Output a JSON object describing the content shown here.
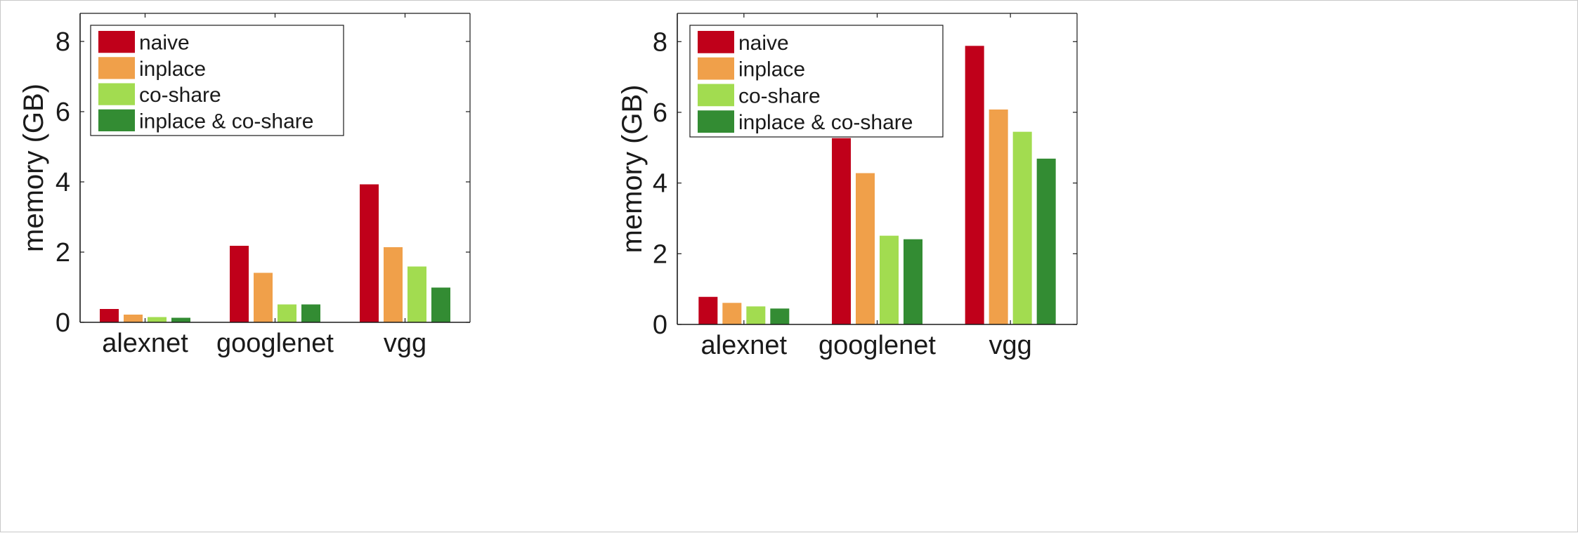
{
  "colors": {
    "naive": "#c0001a",
    "inplace": "#f0a04a",
    "co_share": "#a2dc50",
    "inplace_co_share": "#338c33",
    "axis": "#1a1a1a"
  },
  "chart_data": [
    {
      "type": "bar",
      "categories": [
        "alexnet",
        "googlenet",
        "vgg"
      ],
      "ylabel": "memory (GB)",
      "ylim": [
        0,
        8.8
      ],
      "yticks": [
        "0",
        "2",
        "4",
        "6",
        "8"
      ],
      "legend_position": "top-left",
      "series": [
        {
          "name": "naive",
          "values": [
            0.38,
            2.18,
            3.93
          ]
        },
        {
          "name": "inplace",
          "values": [
            0.22,
            1.41,
            2.14
          ]
        },
        {
          "name": "co-share",
          "values": [
            0.15,
            0.51,
            1.59
          ]
        },
        {
          "name": "inplace & co-share",
          "values": [
            0.13,
            0.51,
            0.99
          ]
        }
      ]
    },
    {
      "type": "bar",
      "categories": [
        "alexnet",
        "googlenet",
        "vgg"
      ],
      "ylabel": "memory (GB)",
      "ylim": [
        0,
        8.8
      ],
      "yticks": [
        "0",
        "2",
        "4",
        "6",
        "8"
      ],
      "legend_position": "top-left",
      "series": [
        {
          "name": "naive",
          "values": [
            0.78,
            5.27,
            7.88
          ]
        },
        {
          "name": "inplace",
          "values": [
            0.61,
            4.28,
            6.08
          ]
        },
        {
          "name": "co-share",
          "values": [
            0.51,
            2.51,
            5.45
          ]
        },
        {
          "name": "inplace & co-share",
          "values": [
            0.45,
            2.41,
            4.69
          ]
        }
      ]
    }
  ]
}
